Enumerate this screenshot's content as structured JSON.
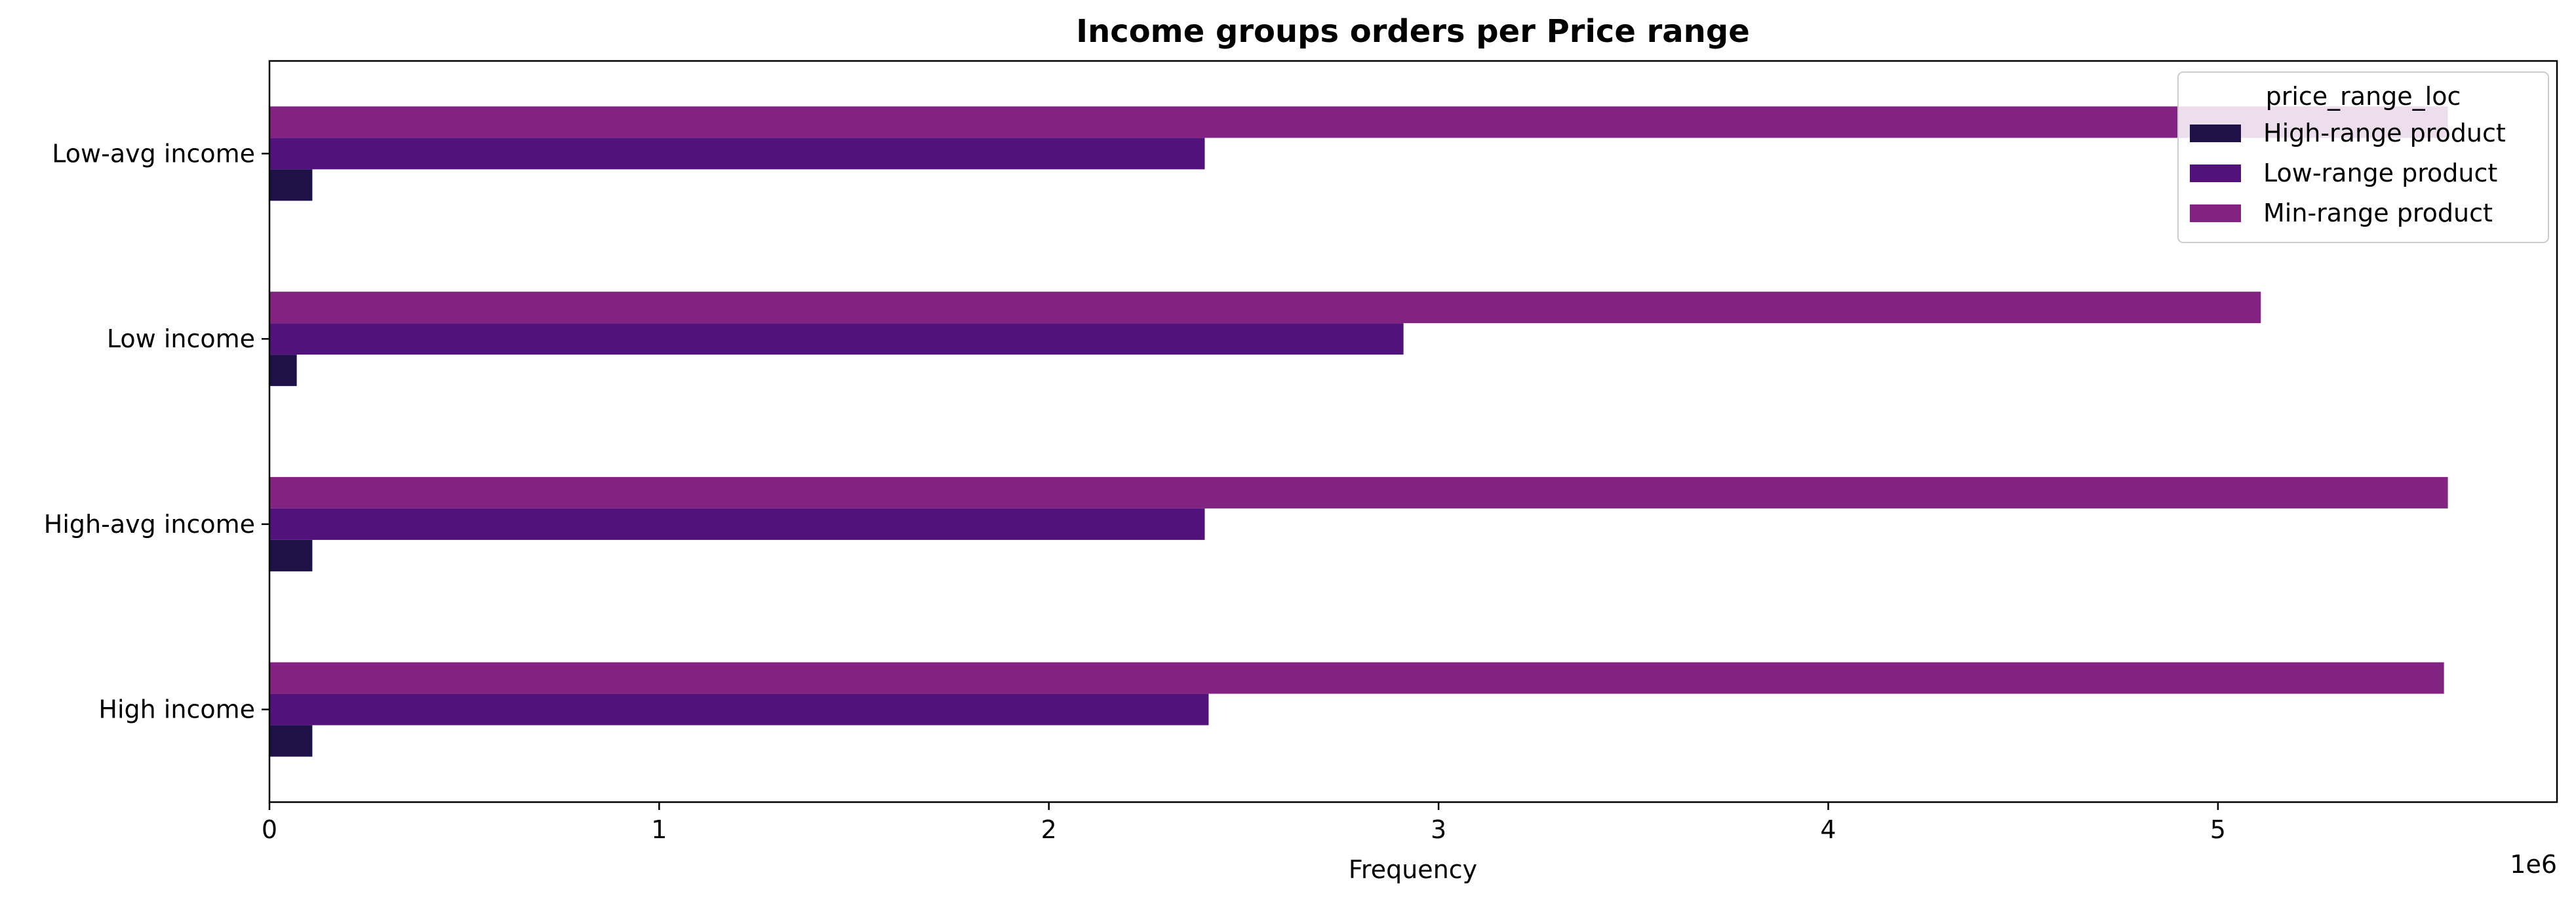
{
  "chart_data": {
    "type": "bar",
    "orientation": "horizontal",
    "title": "Income groups orders per Price range",
    "xlabel": "Frequency",
    "ylabel": "",
    "x_offset_label": "1e6",
    "xlim": [
      0,
      5.87
    ],
    "x_scale": 1000000,
    "x_ticks": [
      0,
      1,
      2,
      3,
      4,
      5
    ],
    "x_tick_labels": [
      "0",
      "1",
      "2",
      "3",
      "4",
      "5"
    ],
    "grid": false,
    "legend": {
      "title": "price_range_loc",
      "position": "top-right"
    },
    "categories": [
      "High income",
      "High-avg income",
      "Low income",
      "Low-avg income"
    ],
    "series": [
      {
        "name": "High-range product",
        "color": "#1f1147",
        "values": [
          0.11,
          0.11,
          0.07,
          0.11
        ]
      },
      {
        "name": "Low-range product",
        "color": "#51127c",
        "values": [
          2.41,
          2.4,
          2.91,
          2.4
        ]
      },
      {
        "name": "Min-range product",
        "color": "#832381",
        "values": [
          5.58,
          5.59,
          5.11,
          5.59
        ]
      }
    ]
  }
}
